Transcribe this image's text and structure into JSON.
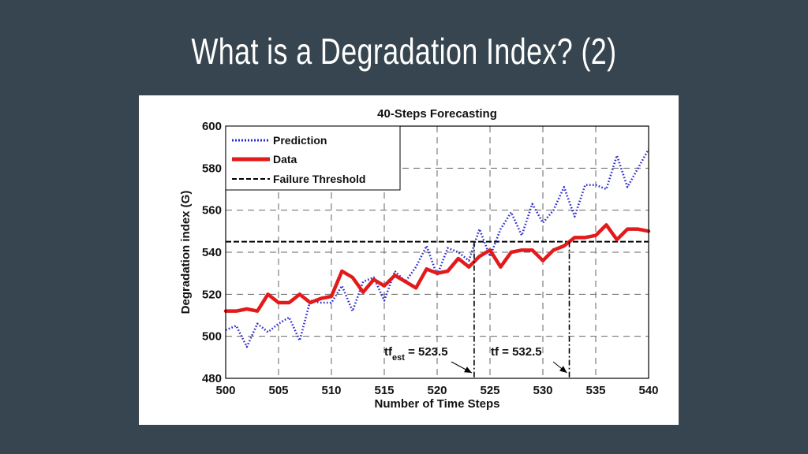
{
  "slide": {
    "title": "What is a Degradation Index? (2)"
  },
  "chart_data": {
    "type": "line",
    "title": "40-Steps Forecasting",
    "xlabel": "Number of Time Steps",
    "ylabel": "Degradation index (G)",
    "xlim": [
      500,
      540
    ],
    "ylim": [
      480,
      600
    ],
    "xticks": [
      500,
      505,
      510,
      515,
      520,
      525,
      530,
      535,
      540
    ],
    "yticks": [
      480,
      500,
      520,
      540,
      560,
      580,
      600
    ],
    "grid": true,
    "legend_position": "top-left",
    "colors": {
      "prediction": "#2b2bcc",
      "data": "#e31a1c",
      "threshold": "#000000"
    },
    "x": [
      500,
      501,
      502,
      503,
      504,
      505,
      506,
      507,
      508,
      509,
      510,
      511,
      512,
      513,
      514,
      515,
      516,
      517,
      518,
      519,
      520,
      521,
      522,
      523,
      524,
      525,
      526,
      527,
      528,
      529,
      530,
      531,
      532,
      533,
      534,
      535,
      536,
      537,
      538,
      539,
      540
    ],
    "series": [
      {
        "name": "Prediction",
        "style": "dotted",
        "values": [
          503,
          505,
          495,
          506,
          502,
          506,
          509,
          498,
          517,
          516,
          516,
          524,
          512,
          526,
          528,
          517,
          531,
          526,
          533,
          543,
          529,
          542,
          540,
          536,
          551,
          538,
          551,
          559,
          548,
          563,
          554,
          560,
          571,
          557,
          572,
          572,
          570,
          586,
          571,
          580,
          589
        ]
      },
      {
        "name": "Data",
        "style": "solid",
        "values": [
          512,
          512,
          513,
          512,
          520,
          516,
          516,
          520,
          516,
          518,
          519,
          531,
          528,
          521,
          527,
          524,
          529,
          526,
          523,
          532,
          530,
          531,
          537,
          533,
          538,
          541,
          533,
          540,
          541,
          541,
          536,
          541,
          543,
          547,
          547,
          548,
          553,
          546,
          551,
          551,
          550
        ]
      },
      {
        "name": "Failure Threshold",
        "style": "dashed",
        "constant": 545
      }
    ],
    "annotations": [
      {
        "prefix": "tf",
        "sub": "est",
        "suffix": " = 523.5",
        "x": 523.5
      },
      {
        "prefix": "tf",
        "sub": "",
        "suffix": " = 532.5",
        "x": 532.5
      }
    ]
  }
}
